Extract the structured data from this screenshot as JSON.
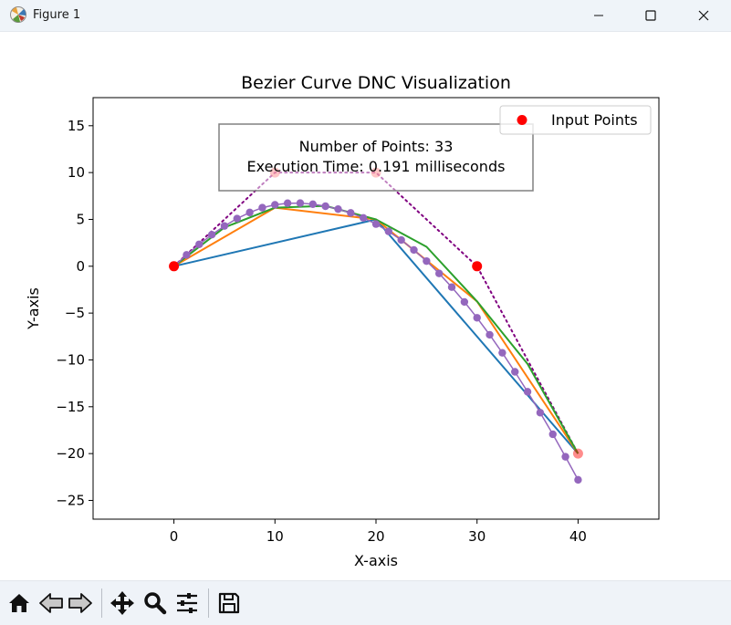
{
  "window": {
    "title": "Figure 1",
    "icons": {
      "app": "matplotlib-icon",
      "minimize": "minimize-icon",
      "maximize": "maximize-icon",
      "close": "close-icon"
    }
  },
  "toolbar": {
    "buttons": [
      {
        "name": "home-button",
        "icon": "home-icon"
      },
      {
        "name": "back-button",
        "icon": "arrow-left-icon"
      },
      {
        "name": "forward-button",
        "icon": "arrow-right-icon"
      },
      {
        "name": "pan-button",
        "icon": "move-icon"
      },
      {
        "name": "zoom-button",
        "icon": "magnifier-icon"
      },
      {
        "name": "configure-subplots-button",
        "icon": "sliders-icon"
      },
      {
        "name": "save-button",
        "icon": "floppy-disk-icon"
      }
    ]
  },
  "chart_data": {
    "type": "line",
    "title": "Bezier Curve DNC Visualization",
    "xlabel": "X-axis",
    "ylabel": "Y-axis",
    "xlim": [
      -8,
      48
    ],
    "ylim": [
      -27,
      18
    ],
    "xticks": [
      0,
      10,
      20,
      30,
      40
    ],
    "yticks": [
      -25,
      -20,
      -15,
      -10,
      -5,
      0,
      5,
      10,
      15
    ],
    "grid": false,
    "legend": {
      "position": "top-right",
      "entries": [
        {
          "label": "Input Points",
          "color": "#ff0000"
        }
      ]
    },
    "annotation": {
      "lines": [
        "Number of Points: 33",
        "Execution Time: 0.191 milliseconds"
      ],
      "position": "top-center"
    },
    "input_points": {
      "x": [
        0,
        10,
        20,
        30,
        40
      ],
      "y": [
        0,
        10,
        10,
        0,
        -20
      ],
      "color": "#ff0000"
    },
    "control_polygon": {
      "style": "dotted",
      "color": "#800080"
    },
    "iterations": [
      {
        "color": "#1f77b4",
        "x": [
          0,
          20,
          40
        ],
        "y": [
          0,
          5,
          -20
        ]
      },
      {
        "color": "#ff7f0e",
        "x": [
          0,
          10,
          20,
          30,
          40
        ],
        "y": [
          0,
          6.25,
          5,
          -3.75,
          -20
        ]
      },
      {
        "color": "#2ca02c",
        "x": [
          0,
          5,
          10,
          15,
          20,
          25,
          30,
          35,
          40
        ],
        "y": [
          0,
          4.14,
          6.25,
          6.45,
          5,
          2.07,
          -3.75,
          -10.43,
          -20
        ]
      }
    ],
    "curve_points": {
      "color": "#9467bd",
      "count": 33,
      "x": [
        0,
        1.25,
        2.5,
        3.75,
        5,
        6.25,
        7.5,
        8.75,
        10,
        11.25,
        12.5,
        13.75,
        15,
        16.25,
        17.5,
        18.75,
        20,
        21.25,
        22.5,
        23.75,
        25,
        26.25,
        27.5,
        28.75,
        30,
        31.25,
        32.5,
        33.75,
        35,
        36.25,
        37.5,
        38.75,
        40
      ],
      "y": [
        0,
        1.21,
        2.34,
        3.37,
        4.3,
        5.09,
        5.74,
        6.25,
        6.56,
        6.73,
        6.74,
        6.62,
        6.41,
        6.1,
        5.69,
        5.16,
        4.5,
        3.72,
        2.8,
        1.74,
        0.55,
        -0.77,
        -2.23,
        -3.81,
        -5.5,
        -7.32,
        -9.24,
        -11.27,
        -13.4,
        -15.63,
        -17.94,
        -20.34,
        -22.8
      ]
    }
  }
}
